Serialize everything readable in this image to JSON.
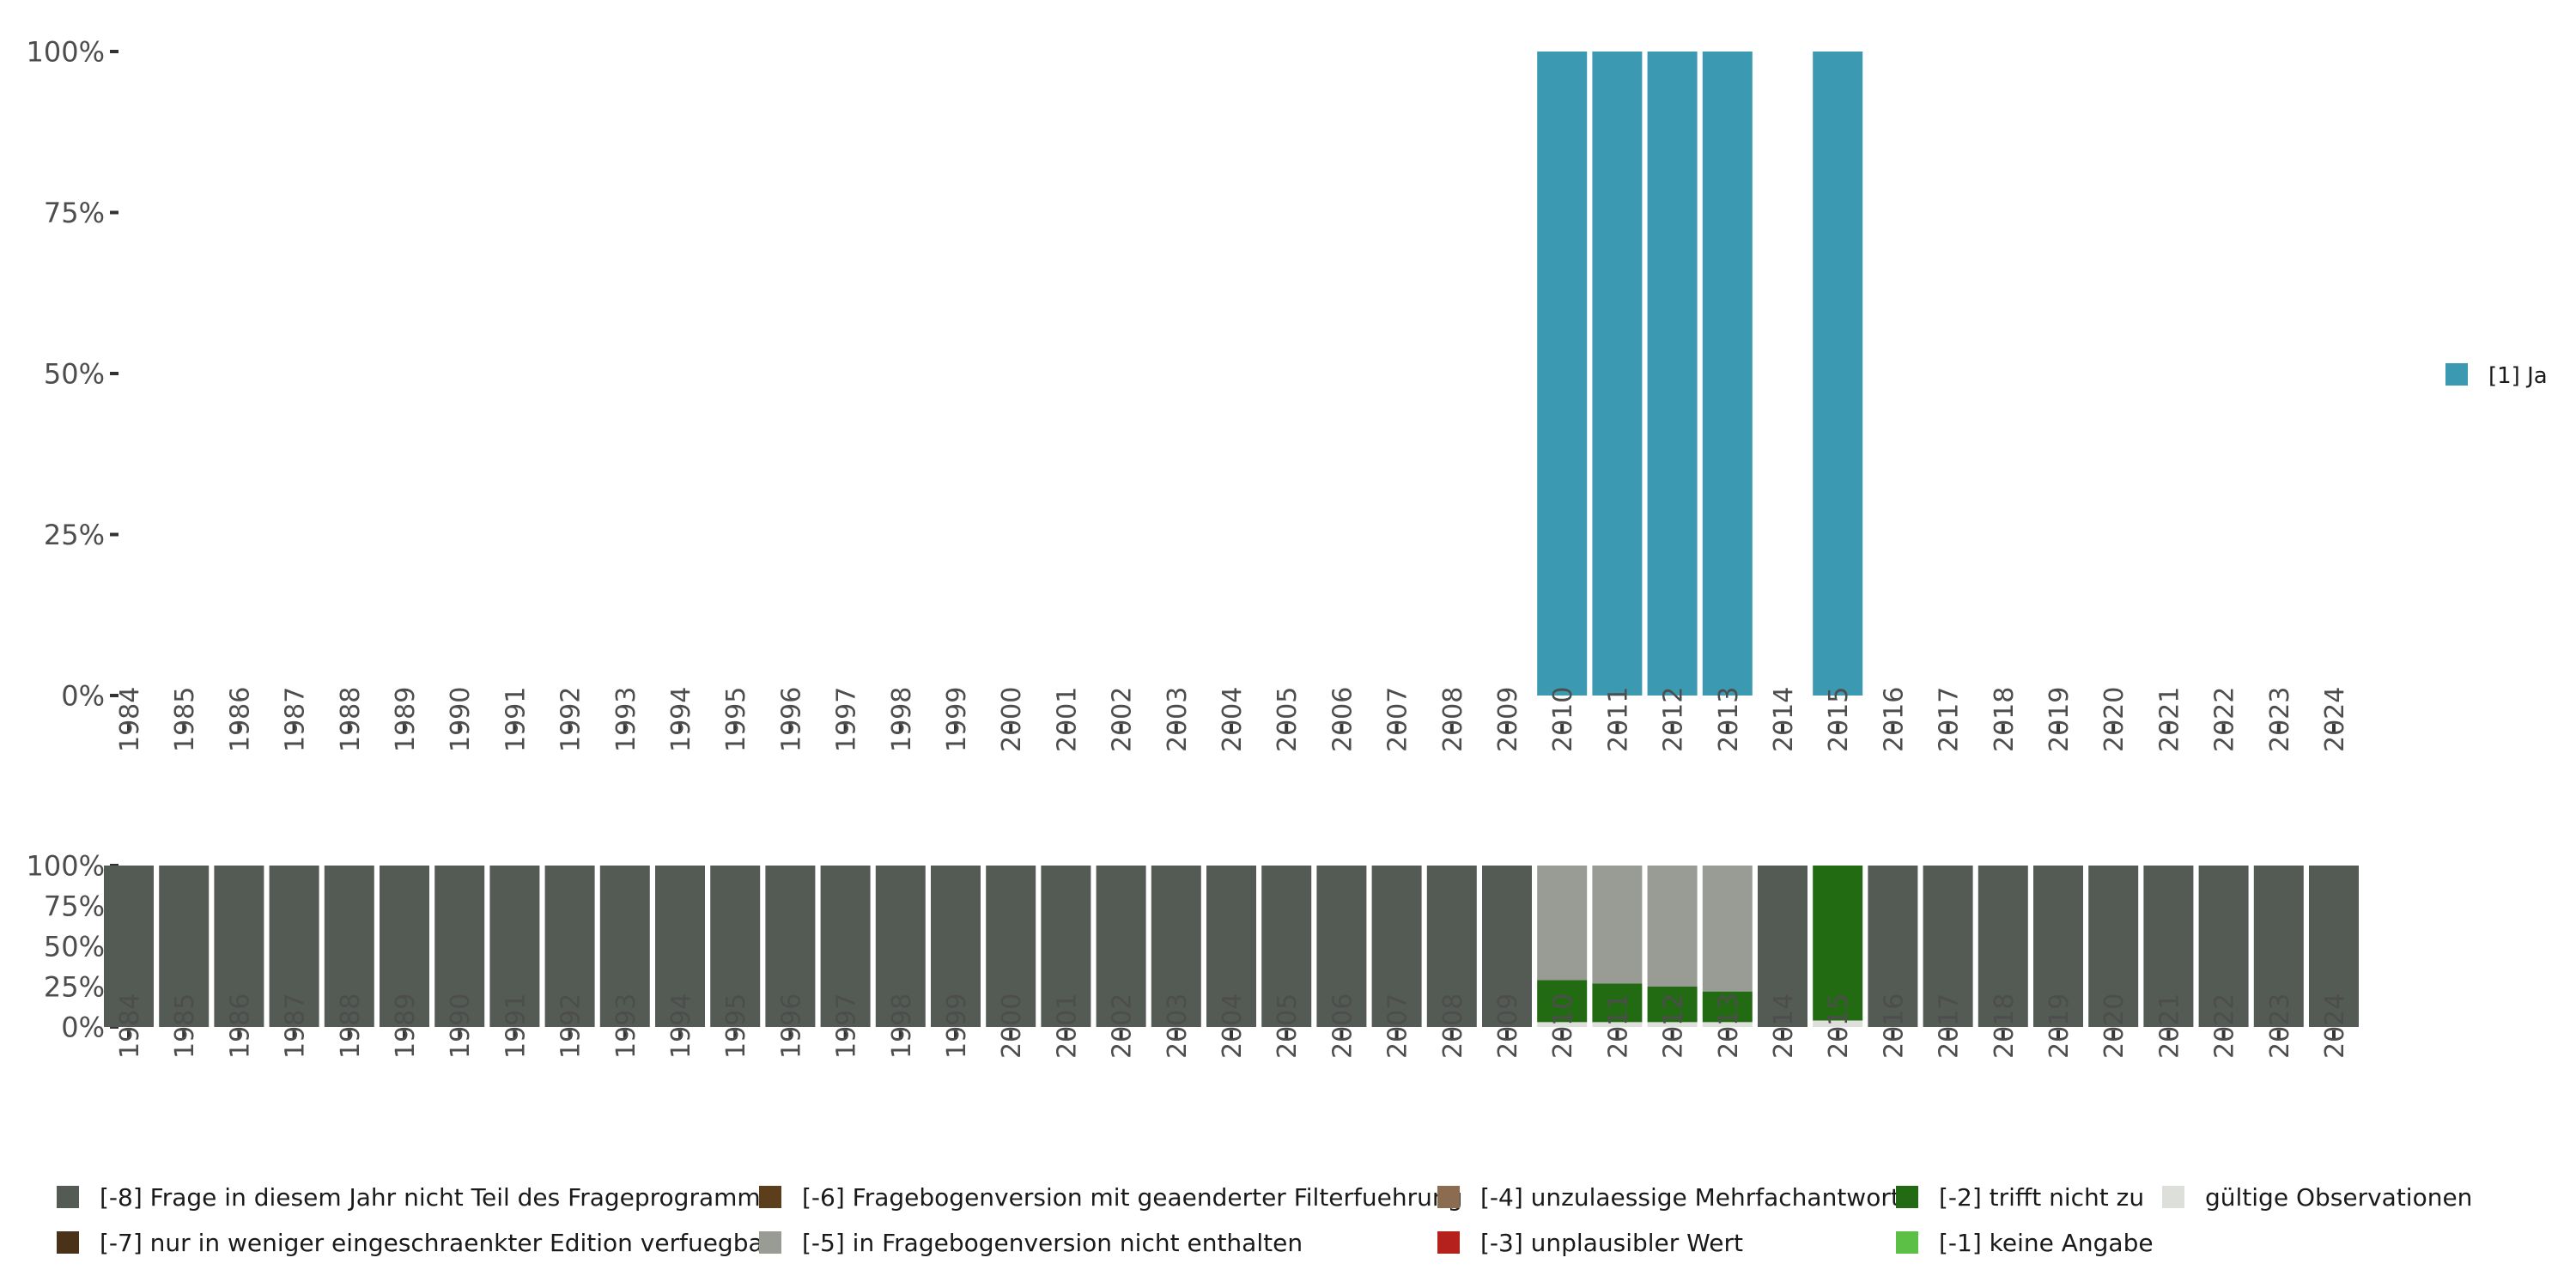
{
  "chart_data": [
    {
      "type": "bar",
      "panel": "top",
      "categories": [
        "1984",
        "1985",
        "1986",
        "1987",
        "1988",
        "1989",
        "1990",
        "1991",
        "1992",
        "1993",
        "1994",
        "1995",
        "1996",
        "1997",
        "1998",
        "1999",
        "2000",
        "2001",
        "2002",
        "2003",
        "2004",
        "2005",
        "2006",
        "2007",
        "2008",
        "2009",
        "2010",
        "2011",
        "2012",
        "2013",
        "2014",
        "2015",
        "2016",
        "2017",
        "2018",
        "2019",
        "2020",
        "2021",
        "2022",
        "2023",
        "2024"
      ],
      "series": [
        {
          "name": "[1] Ja",
          "color": "#3b9ab2",
          "values": [
            null,
            null,
            null,
            null,
            null,
            null,
            null,
            null,
            null,
            null,
            null,
            null,
            null,
            null,
            null,
            null,
            null,
            null,
            null,
            null,
            null,
            null,
            null,
            null,
            null,
            null,
            100,
            100,
            100,
            100,
            null,
            100,
            null,
            null,
            null,
            null,
            null,
            null,
            null,
            null,
            null
          ]
        }
      ],
      "y_ticks": [
        "0%",
        "25%",
        "50%",
        "75%",
        "100%"
      ],
      "ylim": [
        0,
        100
      ],
      "legend": {
        "position": "right",
        "entries": [
          {
            "label": "[1] Ja",
            "color": "#3b9ab2"
          }
        ]
      }
    },
    {
      "type": "bar",
      "stacked": true,
      "panel": "bottom",
      "categories": [
        "1984",
        "1985",
        "1986",
        "1987",
        "1988",
        "1989",
        "1990",
        "1991",
        "1992",
        "1993",
        "1994",
        "1995",
        "1996",
        "1997",
        "1998",
        "1999",
        "2000",
        "2001",
        "2002",
        "2003",
        "2004",
        "2005",
        "2006",
        "2007",
        "2008",
        "2009",
        "2010",
        "2011",
        "2012",
        "2013",
        "2014",
        "2015",
        "2016",
        "2017",
        "2018",
        "2019",
        "2020",
        "2021",
        "2022",
        "2023",
        "2024"
      ],
      "series": [
        {
          "name": "gültige Observationen",
          "color": "#dddfdb",
          "values": [
            0,
            0,
            0,
            0,
            0,
            0,
            0,
            0,
            0,
            0,
            0,
            0,
            0,
            0,
            0,
            0,
            0,
            0,
            0,
            0,
            0,
            0,
            0,
            0,
            0,
            0,
            3,
            3,
            3,
            3,
            0,
            4,
            0,
            0,
            0,
            0,
            0,
            0,
            0,
            0,
            0
          ]
        },
        {
          "name": "[-2] trifft nicht zu",
          "color": "#226b12",
          "values": [
            0,
            0,
            0,
            0,
            0,
            0,
            0,
            0,
            0,
            0,
            0,
            0,
            0,
            0,
            0,
            0,
            0,
            0,
            0,
            0,
            0,
            0,
            0,
            0,
            0,
            0,
            26,
            24,
            22,
            19,
            0,
            96,
            0,
            0,
            0,
            0,
            0,
            0,
            0,
            0,
            0
          ]
        },
        {
          "name": "[-5] in Fragebogenversion nicht enthalten",
          "color": "#989c94",
          "values": [
            0,
            0,
            0,
            0,
            0,
            0,
            0,
            0,
            0,
            0,
            0,
            0,
            0,
            0,
            0,
            0,
            0,
            0,
            0,
            0,
            0,
            0,
            0,
            0,
            0,
            0,
            71,
            73,
            75,
            78,
            0,
            0,
            0,
            0,
            0,
            0,
            0,
            0,
            0,
            0,
            0
          ]
        },
        {
          "name": "[-8] Frage in diesem Jahr nicht Teil des Frageprogramms",
          "color": "#545b54",
          "values": [
            100,
            100,
            100,
            100,
            100,
            100,
            100,
            100,
            100,
            100,
            100,
            100,
            100,
            100,
            100,
            100,
            100,
            100,
            100,
            100,
            100,
            100,
            100,
            100,
            100,
            100,
            0,
            0,
            0,
            0,
            100,
            0,
            100,
            100,
            100,
            100,
            100,
            100,
            100,
            100,
            100
          ]
        }
      ],
      "y_ticks": [
        "0%",
        "25%",
        "50%",
        "75%",
        "100%"
      ],
      "ylim": [
        0,
        100
      ]
    }
  ],
  "bottom_legend": [
    {
      "label": "[-8] Frage in diesem Jahr nicht Teil des Frageprogramms",
      "color": "#545b54"
    },
    {
      "label": "[-7] nur in weniger eingeschraenkter Edition verfuegbar",
      "color": "#4a3219"
    },
    {
      "label": "[-6] Fragebogenversion mit geaenderter Filterfuehrung",
      "color": "#5c3d1c"
    },
    {
      "label": "[-5] in Fragebogenversion nicht enthalten",
      "color": "#989c94"
    },
    {
      "label": "[-4] unzulaessige Mehrfachantwort",
      "color": "#8b6c50"
    },
    {
      "label": "[-3] unplausibler Wert",
      "color": "#b5211c"
    },
    {
      "label": "[-2] trifft nicht zu",
      "color": "#226b12"
    },
    {
      "label": "[-1] keine Angabe",
      "color": "#5cbf46"
    },
    {
      "label": "gültige Observationen",
      "color": "#dddfdb"
    }
  ]
}
